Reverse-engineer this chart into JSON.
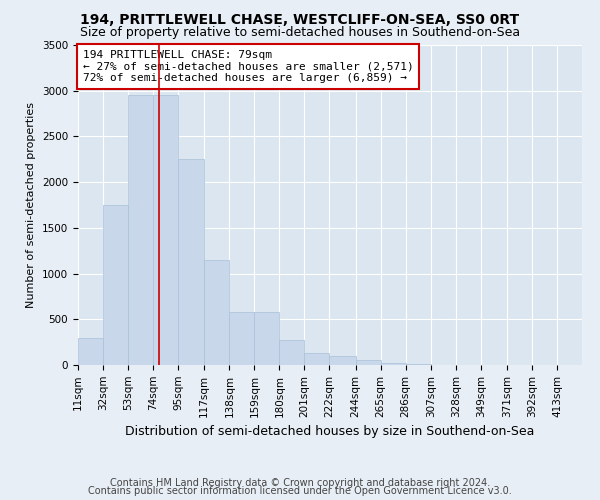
{
  "title": "194, PRITTLEWELL CHASE, WESTCLIFF-ON-SEA, SS0 0RT",
  "subtitle": "Size of property relative to semi-detached houses in Southend-on-Sea",
  "xlabel": "Distribution of semi-detached houses by size in Southend-on-Sea",
  "ylabel": "Number of semi-detached properties",
  "footnote1": "Contains HM Land Registry data © Crown copyright and database right 2024.",
  "footnote2": "Contains public sector information licensed under the Open Government Licence v3.0.",
  "annotation_line1": "194 PRITTLEWELL CHASE: 79sqm",
  "annotation_line2": "← 27% of semi-detached houses are smaller (2,571)",
  "annotation_line3": "72% of semi-detached houses are larger (6,859) →",
  "property_size": 79,
  "bar_bins": [
    11,
    32,
    53,
    74,
    95,
    117,
    138,
    159,
    180,
    201,
    222,
    244,
    265,
    286,
    307,
    328,
    349,
    371,
    392,
    413,
    434
  ],
  "bar_heights": [
    300,
    1750,
    2950,
    2950,
    2250,
    1150,
    580,
    580,
    270,
    130,
    95,
    50,
    20,
    10,
    5,
    3,
    2,
    1,
    1,
    0
  ],
  "bar_color": "#c8d8ea",
  "bar_edgecolor": "#aac0d8",
  "redline_x": 79,
  "ylim": [
    0,
    3500
  ],
  "yticks": [
    0,
    500,
    1000,
    1500,
    2000,
    2500,
    3000,
    3500
  ],
  "bg_color": "#e8eef5",
  "plot_bg_color": "#dce6f0",
  "grid_color": "#ffffff",
  "annotation_box_facecolor": "#ffffff",
  "annotation_border_color": "#cc0000",
  "title_fontsize": 10,
  "subtitle_fontsize": 9,
  "xlabel_fontsize": 9,
  "ylabel_fontsize": 8,
  "tick_fontsize": 7.5,
  "annotation_fontsize": 8,
  "footnote_fontsize": 7
}
